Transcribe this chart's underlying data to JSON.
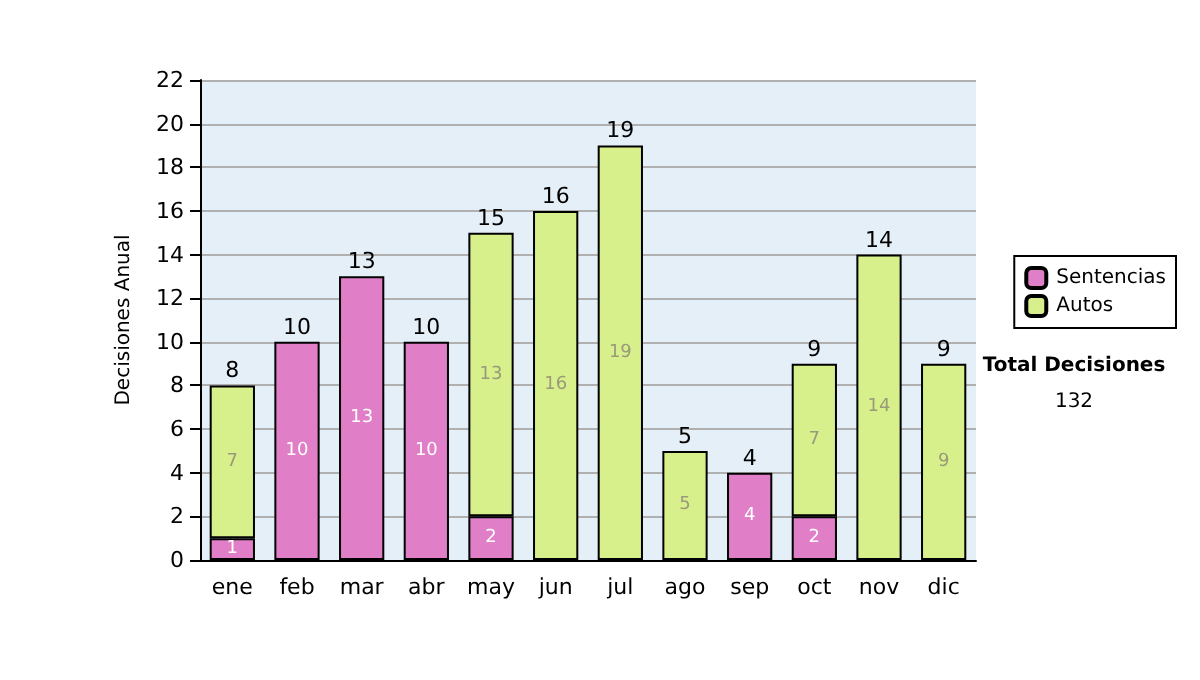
{
  "chart_data": {
    "type": "bar",
    "stacked": true,
    "ylabel": "Decisiones Anual",
    "categories": [
      "ene",
      "feb",
      "mar",
      "abr",
      "may",
      "jun",
      "jul",
      "ago",
      "sep",
      "oct",
      "nov",
      "dic"
    ],
    "series": [
      {
        "name": "Sentencias",
        "color": "#e07ec8",
        "values": [
          1,
          10,
          13,
          10,
          2,
          null,
          null,
          null,
          4,
          2,
          null,
          null
        ],
        "value_labels": [
          "1",
          "10",
          "13",
          "10",
          "2",
          null,
          null,
          null,
          "4",
          "2",
          null,
          null
        ]
      },
      {
        "name": "Autos",
        "color": "#d8f08c",
        "values": [
          7,
          null,
          null,
          null,
          13,
          16,
          19,
          5,
          null,
          7,
          14,
          9
        ],
        "value_labels": [
          "7",
          null,
          null,
          null,
          "13",
          "16",
          "19",
          "5",
          null,
          "7",
          "14",
          "9"
        ]
      }
    ],
    "totals": [
      "8",
      "10",
      "13",
      "10",
      "15",
      "16",
      "19",
      "5",
      "4",
      "9",
      "14",
      "9"
    ],
    "ylim": [
      0,
      22
    ],
    "yticks": [
      0,
      2,
      4,
      6,
      8,
      10,
      12,
      14,
      16,
      18,
      20,
      22
    ],
    "grid": "y",
    "legend": "right",
    "annotations": [
      "Total Decisiones",
      "132"
    ]
  }
}
